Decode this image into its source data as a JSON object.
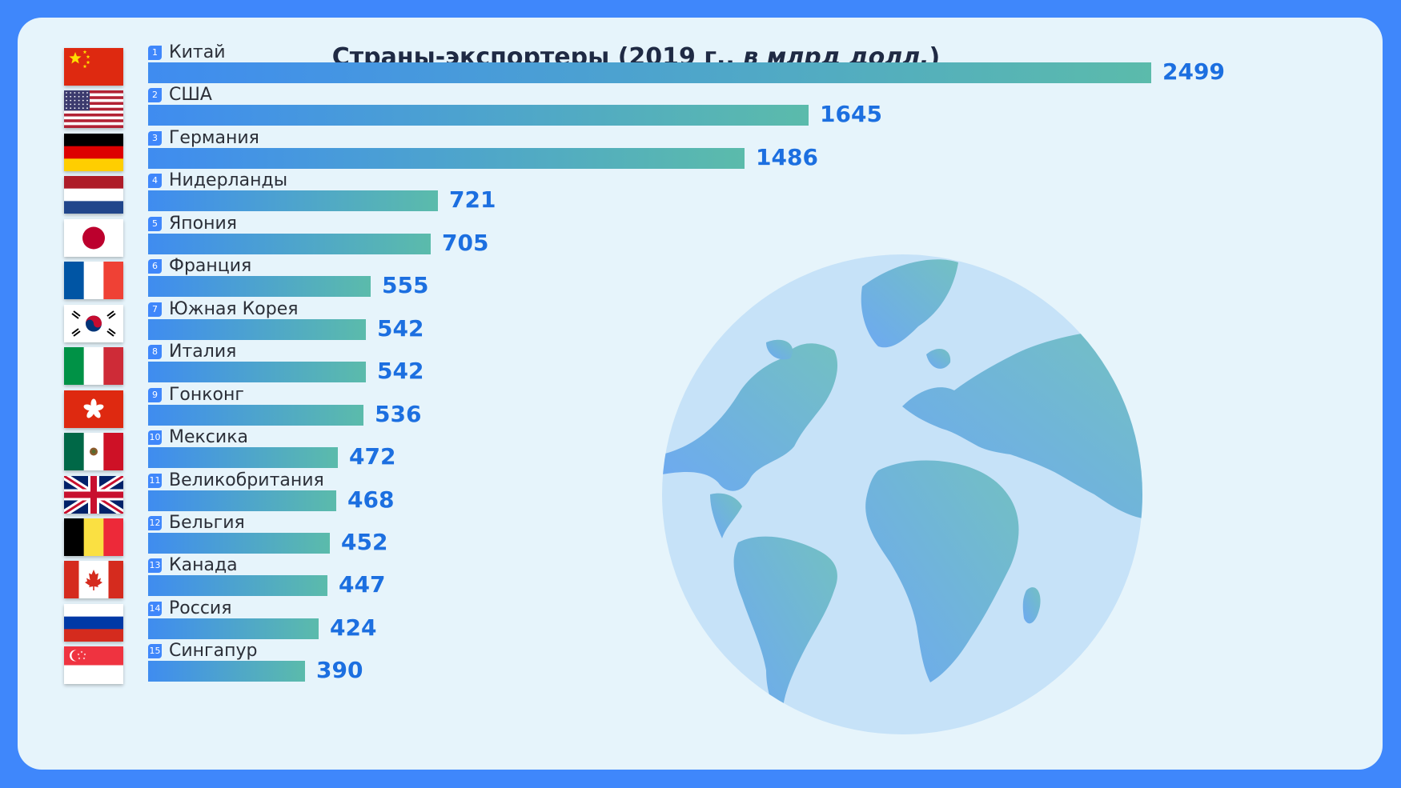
{
  "title": {
    "main": "Страны-экспортеры (2019 г., ",
    "italic": "в млрд долл.",
    "close": ")"
  },
  "chart_data": {
    "type": "bar",
    "orientation": "horizontal",
    "title": "Страны-экспортеры (2019 г., в млрд долл.)",
    "categories": [
      "Китай",
      "США",
      "Германия",
      "Нидерланды",
      "Япония",
      "Франция",
      "Южная Корея",
      "Италия",
      "Гонконг",
      "Мексика",
      "Великобритания",
      "Бельгия",
      "Канада",
      "Россия",
      "Сингапур"
    ],
    "ranks": [
      "1",
      "2",
      "3",
      "4",
      "5",
      "6",
      "7",
      "8",
      "9",
      "10",
      "11",
      "12",
      "13",
      "14",
      "15"
    ],
    "values": [
      2499,
      1645,
      1486,
      721,
      705,
      555,
      542,
      542,
      536,
      472,
      468,
      452,
      447,
      424,
      390
    ],
    "flags": [
      "cn",
      "us",
      "de",
      "nl",
      "jp",
      "fr",
      "kr",
      "it",
      "hk",
      "mx",
      "gb",
      "be",
      "ca",
      "ru",
      "sg"
    ],
    "xlim": [
      0,
      2499
    ],
    "grid": false,
    "legend": "none"
  },
  "colors": {
    "background": "#3f87fb",
    "panel": "#e6f4fb",
    "bar_start": "#3f8cf0",
    "bar_end": "#5bbbab",
    "value_text": "#1c6fe0",
    "rank_badge": "#3f87fb"
  },
  "decoration": {
    "globe": "globe-icon"
  }
}
